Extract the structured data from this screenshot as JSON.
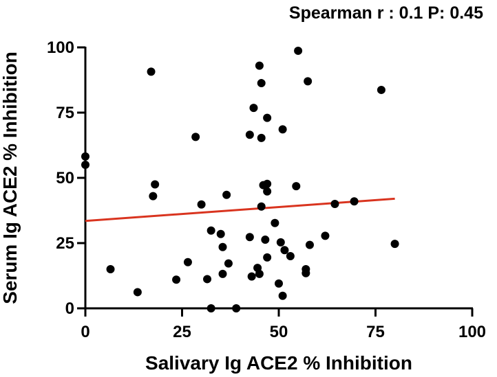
{
  "chart_data": {
    "type": "scatter",
    "title": "Spearman r : 0.1 P: 0.45",
    "xlabel": "Salivary Ig ACE2 % Inhibition",
    "ylabel": "Serum Ig ACE2 % Inhibition",
    "xlim": [
      0,
      100
    ],
    "ylim": [
      0,
      100
    ],
    "xticks": [
      0,
      25,
      50,
      75,
      100
    ],
    "yticks": [
      0,
      25,
      50,
      75,
      100
    ],
    "xtick_labels": [
      "0",
      "25",
      "50",
      "75",
      "100"
    ],
    "ytick_labels": [
      "0",
      "25",
      "50",
      "75",
      "100"
    ],
    "points": [
      {
        "x": 0.0,
        "y": 58.2
      },
      {
        "x": 0.0,
        "y": 55.0
      },
      {
        "x": 6.5,
        "y": 15.0
      },
      {
        "x": 13.5,
        "y": 6.2
      },
      {
        "x": 17.0,
        "y": 90.7
      },
      {
        "x": 17.5,
        "y": 43.0
      },
      {
        "x": 18.0,
        "y": 47.5
      },
      {
        "x": 23.5,
        "y": 11.0
      },
      {
        "x": 26.5,
        "y": 17.7
      },
      {
        "x": 28.5,
        "y": 65.7
      },
      {
        "x": 30.0,
        "y": 39.8
      },
      {
        "x": 31.5,
        "y": 11.2
      },
      {
        "x": 32.5,
        "y": 29.8
      },
      {
        "x": 32.5,
        "y": 0.0
      },
      {
        "x": 35.0,
        "y": 28.5
      },
      {
        "x": 35.5,
        "y": 23.5
      },
      {
        "x": 35.5,
        "y": 13.2
      },
      {
        "x": 36.5,
        "y": 43.5
      },
      {
        "x": 37.0,
        "y": 17.2
      },
      {
        "x": 39.0,
        "y": 0.0
      },
      {
        "x": 42.5,
        "y": 27.3
      },
      {
        "x": 42.5,
        "y": 66.5
      },
      {
        "x": 43.0,
        "y": 12.2
      },
      {
        "x": 43.5,
        "y": 76.8
      },
      {
        "x": 44.5,
        "y": 15.5
      },
      {
        "x": 45.0,
        "y": 93.0
      },
      {
        "x": 45.0,
        "y": 13.2
      },
      {
        "x": 45.5,
        "y": 39.0
      },
      {
        "x": 45.5,
        "y": 65.3
      },
      {
        "x": 45.5,
        "y": 86.3
      },
      {
        "x": 46.0,
        "y": 47.2
      },
      {
        "x": 46.5,
        "y": 26.3
      },
      {
        "x": 47.0,
        "y": 47.7
      },
      {
        "x": 47.0,
        "y": 44.8
      },
      {
        "x": 47.0,
        "y": 73.0
      },
      {
        "x": 47.0,
        "y": 19.5
      },
      {
        "x": 49.0,
        "y": 32.7
      },
      {
        "x": 50.0,
        "y": 9.5
      },
      {
        "x": 50.5,
        "y": 25.3
      },
      {
        "x": 51.0,
        "y": 4.8
      },
      {
        "x": 51.0,
        "y": 68.6
      },
      {
        "x": 51.5,
        "y": 22.3
      },
      {
        "x": 53.0,
        "y": 20.0
      },
      {
        "x": 54.5,
        "y": 46.8
      },
      {
        "x": 55.0,
        "y": 98.7
      },
      {
        "x": 57.0,
        "y": 15.0
      },
      {
        "x": 57.0,
        "y": 13.5
      },
      {
        "x": 57.5,
        "y": 87.0
      },
      {
        "x": 58.0,
        "y": 24.3
      },
      {
        "x": 62.0,
        "y": 27.8
      },
      {
        "x": 64.5,
        "y": 40.0
      },
      {
        "x": 69.5,
        "y": 41.0
      },
      {
        "x": 76.5,
        "y": 83.7
      },
      {
        "x": 80.0,
        "y": 24.7
      }
    ],
    "regression_line": {
      "x": [
        0,
        80
      ],
      "y": [
        33.5,
        42.0
      ],
      "color": "#d9341f"
    },
    "marker_color": "#000000",
    "grid": false,
    "legend": "none"
  }
}
